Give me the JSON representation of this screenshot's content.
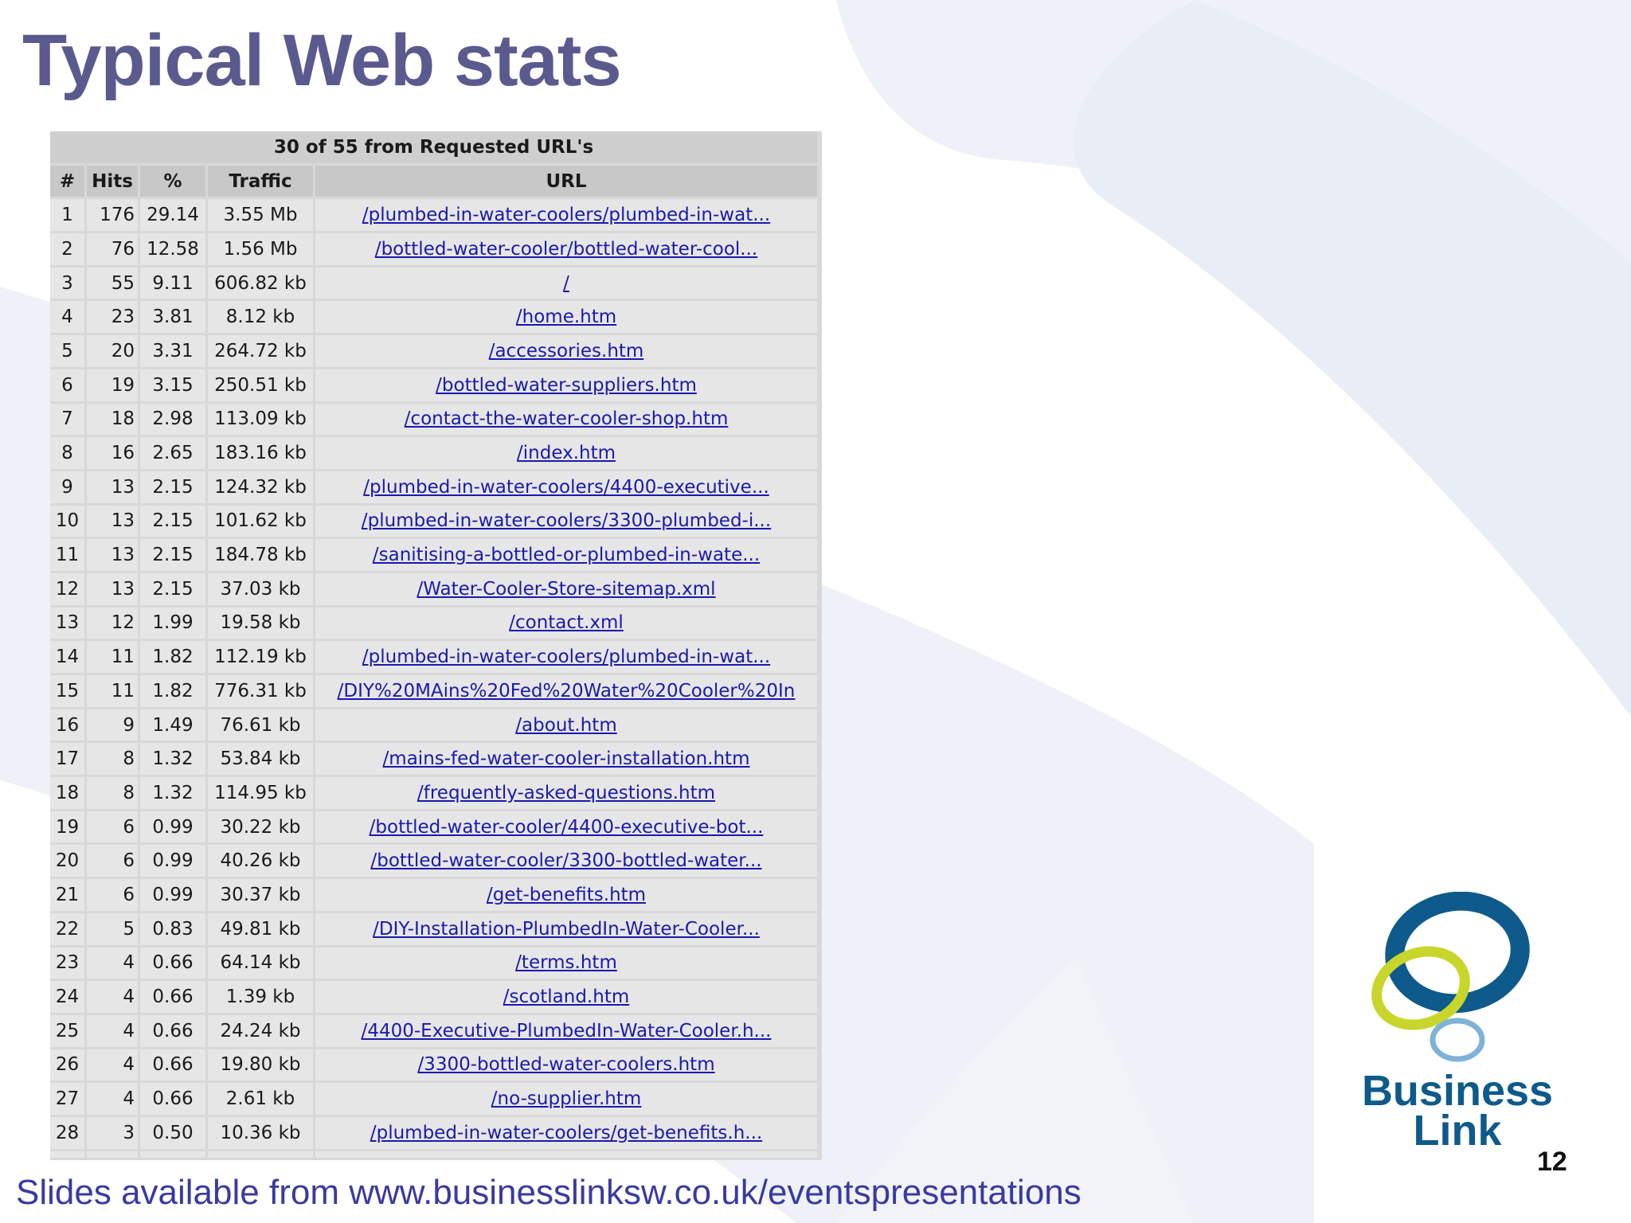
{
  "slide": {
    "title": "Typical Web stats",
    "page_number": "12",
    "footer": "Slides available from www.businesslinksw.co.uk/eventspresentations"
  },
  "logo": {
    "line1": "Business",
    "line2": "Link",
    "colors": [
      "#0e5a8a",
      "#c8d62b",
      "#7fb2d6"
    ]
  },
  "table": {
    "caption": "30 of 55 from Requested URL's",
    "headers": [
      "#",
      "Hits",
      "%",
      "Traffic",
      "URL"
    ],
    "rows": [
      [
        "1",
        "176",
        "29.14",
        "3.55 Mb",
        "/plumbed-in-water-coolers/plumbed-in-wat..."
      ],
      [
        "2",
        "76",
        "12.58",
        "1.56 Mb",
        "/bottled-water-cooler/bottled-water-cool..."
      ],
      [
        "3",
        "55",
        "9.11",
        "606.82 kb",
        "/"
      ],
      [
        "4",
        "23",
        "3.81",
        "8.12 kb",
        "/home.htm"
      ],
      [
        "5",
        "20",
        "3.31",
        "264.72 kb",
        "/accessories.htm"
      ],
      [
        "6",
        "19",
        "3.15",
        "250.51 kb",
        "/bottled-water-suppliers.htm"
      ],
      [
        "7",
        "18",
        "2.98",
        "113.09 kb",
        "/contact-the-water-cooler-shop.htm"
      ],
      [
        "8",
        "16",
        "2.65",
        "183.16 kb",
        "/index.htm"
      ],
      [
        "9",
        "13",
        "2.15",
        "124.32 kb",
        "/plumbed-in-water-coolers/4400-executive..."
      ],
      [
        "10",
        "13",
        "2.15",
        "101.62 kb",
        "/plumbed-in-water-coolers/3300-plumbed-i..."
      ],
      [
        "11",
        "13",
        "2.15",
        "184.78 kb",
        "/sanitising-a-bottled-or-plumbed-in-wate..."
      ],
      [
        "12",
        "13",
        "2.15",
        "37.03 kb",
        "/Water-Cooler-Store-sitemap.xml"
      ],
      [
        "13",
        "12",
        "1.99",
        "19.58 kb",
        "/contact.xml"
      ],
      [
        "14",
        "11",
        "1.82",
        "112.19 kb",
        "/plumbed-in-water-coolers/plumbed-in-wat..."
      ],
      [
        "15",
        "11",
        "1.82",
        "776.31 kb",
        "/DIY%20MAins%20Fed%20Water%20Cooler%20In"
      ],
      [
        "16",
        "9",
        "1.49",
        "76.61 kb",
        "/about.htm"
      ],
      [
        "17",
        "8",
        "1.32",
        "53.84 kb",
        "/mains-fed-water-cooler-installation.htm"
      ],
      [
        "18",
        "8",
        "1.32",
        "114.95 kb",
        "/frequently-asked-questions.htm"
      ],
      [
        "19",
        "6",
        "0.99",
        "30.22 kb",
        "/bottled-water-cooler/4400-executive-bot..."
      ],
      [
        "20",
        "6",
        "0.99",
        "40.26 kb",
        "/bottled-water-cooler/3300-bottled-water..."
      ],
      [
        "21",
        "6",
        "0.99",
        "30.37 kb",
        "/get-benefits.htm"
      ],
      [
        "22",
        "5",
        "0.83",
        "49.81 kb",
        "/DIY-Installation-PlumbedIn-Water-Cooler..."
      ],
      [
        "23",
        "4",
        "0.66",
        "64.14 kb",
        "/terms.htm"
      ],
      [
        "24",
        "4",
        "0.66",
        "1.39 kb",
        "/scotland.htm"
      ],
      [
        "25",
        "4",
        "0.66",
        "24.24 kb",
        "/4400-Executive-PlumbedIn-Water-Cooler.h..."
      ],
      [
        "26",
        "4",
        "0.66",
        "19.80 kb",
        "/3300-bottled-water-coolers.htm"
      ],
      [
        "27",
        "4",
        "0.66",
        "2.61 kb",
        "/no-supplier.htm"
      ],
      [
        "28",
        "3",
        "0.50",
        "10.36 kb",
        "/plumbed-in-water-coolers/get-benefits.h..."
      ]
    ]
  },
  "colors": {
    "title": "#5a5a8f",
    "link": "#1a1aaa",
    "footer": "#3a3aa0"
  }
}
